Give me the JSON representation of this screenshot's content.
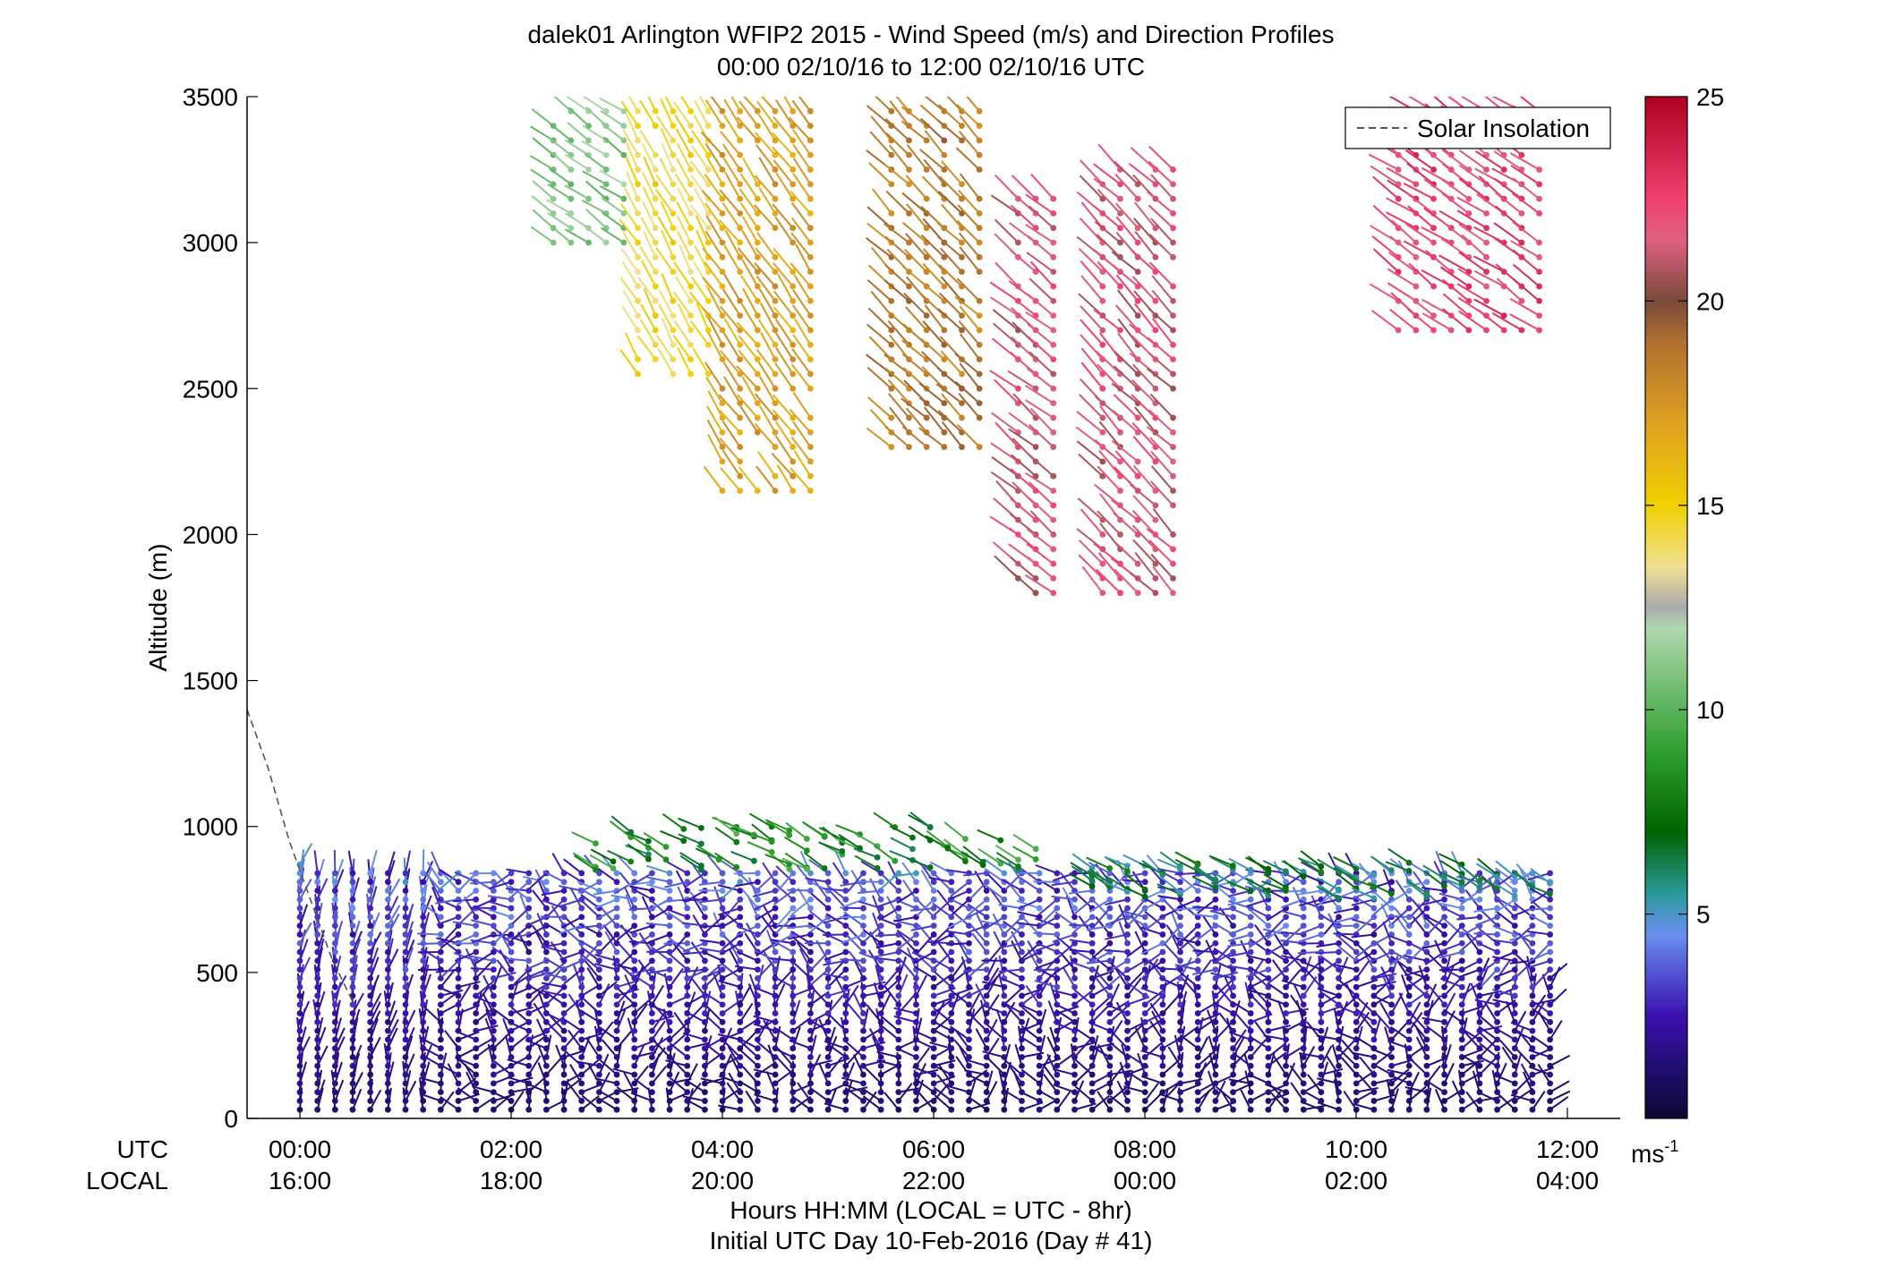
{
  "chart_data": {
    "type": "scatter",
    "subtype": "wind-barb-profile",
    "title": "dalek01 Arlington WFIP2 2015 - Wind Speed (m/s) and Direction Profiles",
    "subtitle": "00:00 02/10/16 to 12:00 02/10/16  UTC",
    "xlabel": "Hours HH:MM  (LOCAL = UTC - 8hr)",
    "xlabel2": "Initial UTC Day 10-Feb-2016 (Day # 41)",
    "ylabel": "Altitude (m)",
    "row_labels": [
      "UTC",
      "LOCAL"
    ],
    "xlim_hours": [
      -0.5,
      12.5
    ],
    "ylim": [
      0,
      3500
    ],
    "xticks_hours": [
      0,
      2,
      4,
      6,
      8,
      10,
      12
    ],
    "xtick_labels_utc": [
      "00:00",
      "02:00",
      "04:00",
      "06:00",
      "08:00",
      "10:00",
      "12:00"
    ],
    "xtick_labels_local": [
      "16:00",
      "18:00",
      "20:00",
      "22:00",
      "00:00",
      "02:00",
      "04:00"
    ],
    "yticks": [
      0,
      500,
      1000,
      1500,
      2000,
      2500,
      3000,
      3500
    ],
    "legend": {
      "label": "Solar Insolation",
      "position": "top-right",
      "style": "dashed"
    },
    "colorbar": {
      "range": [
        0,
        25
      ],
      "ticks": [
        5,
        10,
        15,
        20,
        25
      ],
      "unit_base": "ms",
      "unit_exp": "-1",
      "stops": [
        {
          "v": 0,
          "color": "#0a0a30"
        },
        {
          "v": 2.5,
          "color": "#3a10b0"
        },
        {
          "v": 4.5,
          "color": "#6a8ff0"
        },
        {
          "v": 5.5,
          "color": "#2a9a9a"
        },
        {
          "v": 7,
          "color": "#006400"
        },
        {
          "v": 9,
          "color": "#30a030"
        },
        {
          "v": 12,
          "color": "#b0d8b0"
        },
        {
          "v": 12.5,
          "color": "#aaaaaa"
        },
        {
          "v": 13.5,
          "color": "#f0e090"
        },
        {
          "v": 15,
          "color": "#f0d000"
        },
        {
          "v": 17,
          "color": "#e0a020"
        },
        {
          "v": 19,
          "color": "#b07030"
        },
        {
          "v": 20,
          "color": "#7a4a3a"
        },
        {
          "v": 21.5,
          "color": "#e06080"
        },
        {
          "v": 22.5,
          "color": "#f04070"
        },
        {
          "v": 25,
          "color": "#b00020"
        }
      ]
    },
    "solar_insolation": [
      {
        "t": -0.5,
        "alt": 1400
      },
      {
        "t": -0.3,
        "alt": 1200
      },
      {
        "t": -0.1,
        "alt": 950
      },
      {
        "t": 0.1,
        "alt": 750
      },
      {
        "t": 0.3,
        "alt": 550
      },
      {
        "t": 0.5,
        "alt": 400
      }
    ],
    "profiles": {
      "low_level": [
        {
          "t_start": 0.0,
          "t_end": 12.0,
          "t_step": 0.1667,
          "alt_bottom": 30,
          "alt_top_start": 870,
          "alt_top_end": 850,
          "alt_step": 30,
          "speed_range": [
            1,
            5
          ],
          "direction_deg_range": [
            120,
            330
          ]
        }
      ],
      "mid_level_jet": [
        {
          "t_start": 2.8,
          "t_end": 7.0,
          "alt_min": 850,
          "alt_max": 1000,
          "speed_range": [
            6,
            10
          ],
          "direction_deg": 240
        },
        {
          "t_start": 7.5,
          "t_end": 12.0,
          "alt_min": 750,
          "alt_max": 880,
          "speed_range": [
            5,
            8
          ],
          "direction_deg": 240
        }
      ],
      "upper_level": [
        {
          "t_start": 2.4,
          "t_end": 3.2,
          "alt_min": 3000,
          "alt_max": 3480,
          "speed": 11,
          "direction_deg": 235
        },
        {
          "t_start": 3.2,
          "t_end": 4.0,
          "alt_min": 2550,
          "alt_max": 3480,
          "speed": 14.5,
          "direction_deg": 210
        },
        {
          "t_start": 4.0,
          "t_end": 4.9,
          "alt_min": 2150,
          "alt_max": 3480,
          "speed": 17,
          "direction_deg": 215
        },
        {
          "t_start": 5.6,
          "t_end": 6.6,
          "alt_min": 2300,
          "alt_max": 3480,
          "speed": 18.5,
          "direction_deg": 225
        },
        {
          "t_start": 6.8,
          "t_end": 7.3,
          "alt_min": 1800,
          "alt_max": 3150,
          "speed": 21.5,
          "direction_deg": 230
        },
        {
          "t_start": 7.6,
          "t_end": 8.4,
          "alt_min": 1800,
          "alt_max": 3250,
          "speed": 21.5,
          "direction_deg": 225
        },
        {
          "t_start": 10.4,
          "t_end": 11.9,
          "alt_min": 2700,
          "alt_max": 3480,
          "speed": 22.5,
          "direction_deg": 235
        }
      ]
    }
  }
}
